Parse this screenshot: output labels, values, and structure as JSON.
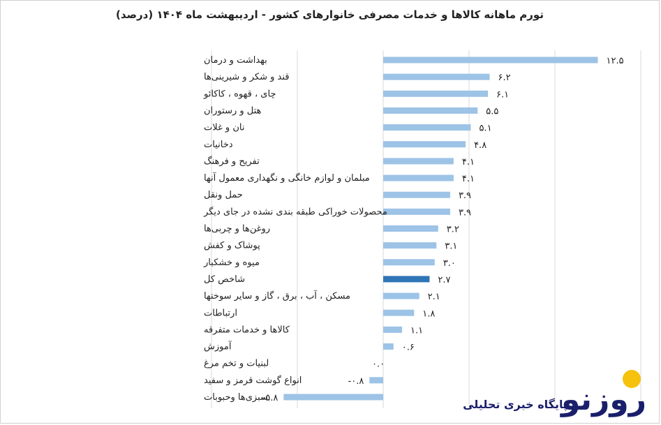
{
  "chart_data": {
    "type": "bar",
    "orientation": "horizontal",
    "title": "تورم ماهانه کالاها و خدمات مصرفی خانوارهای کشور - اردیبهشت ماه ۱۴۰۴ (درصد)",
    "categories": [
      "بهداشت و درمان",
      "قند و شکر و شیرینی‌ها",
      "چای ، قهوه ، کاکائو",
      "هتل و رستوران",
      "نان و غلات",
      "دخانیات",
      "تفریح و فرهنگ",
      "مبلمان و لوازم خانگی و نگهداری معمول آنها",
      "حمل ونقل",
      "محصولات خوراکی طبقه بندی نشده در جای دیگر",
      "روغن‌ها و چربی‌ها",
      "پوشاک و کفش",
      "میوه و خشکبار",
      "شاخص کل",
      "مسکن ، آب ، برق ، گاز و سایر سوختها",
      "ارتباطات",
      "کالاها و خدمات متفرقه",
      "آموزش",
      "لبنیات و تخم مرغ",
      "انواع گوشت قرمز و سفید",
      "سبزی‌ها وحبوبات"
    ],
    "values": [
      12.5,
      6.2,
      6.1,
      5.5,
      5.1,
      4.8,
      4.1,
      4.1,
      3.9,
      3.9,
      3.2,
      3.1,
      3.0,
      2.7,
      2.1,
      1.8,
      1.1,
      0.6,
      0.0,
      -0.8,
      -5.8
    ],
    "value_labels": [
      "۱۲.۵",
      "۶.۲",
      "۶.۱",
      "۵.۵",
      "۵.۱",
      "۴.۸",
      "۴.۱",
      "۴.۱",
      "۳.۹",
      "۳.۹",
      "۳.۲",
      "۳.۱",
      "۳.۰",
      "۲.۷",
      "۲.۱",
      "۱.۸",
      "۱.۱",
      "۰.۶",
      "۰.۰",
      "-۰.۸",
      "-۵.۸"
    ],
    "highlight_category": "شاخص کل",
    "xlim": [
      -10,
      15
    ],
    "grid": true,
    "legend": "none",
    "colors": {
      "bar": "#9dc3e6",
      "highlight": "#2e75b6",
      "grid": "#d9d9d9"
    }
  },
  "watermark": {
    "logo_text": "روزنو",
    "tagline": "پایگاه خبری تحلیلی",
    "colors": {
      "navy": "#1a1f6b",
      "yellow": "#f6c20e"
    }
  }
}
